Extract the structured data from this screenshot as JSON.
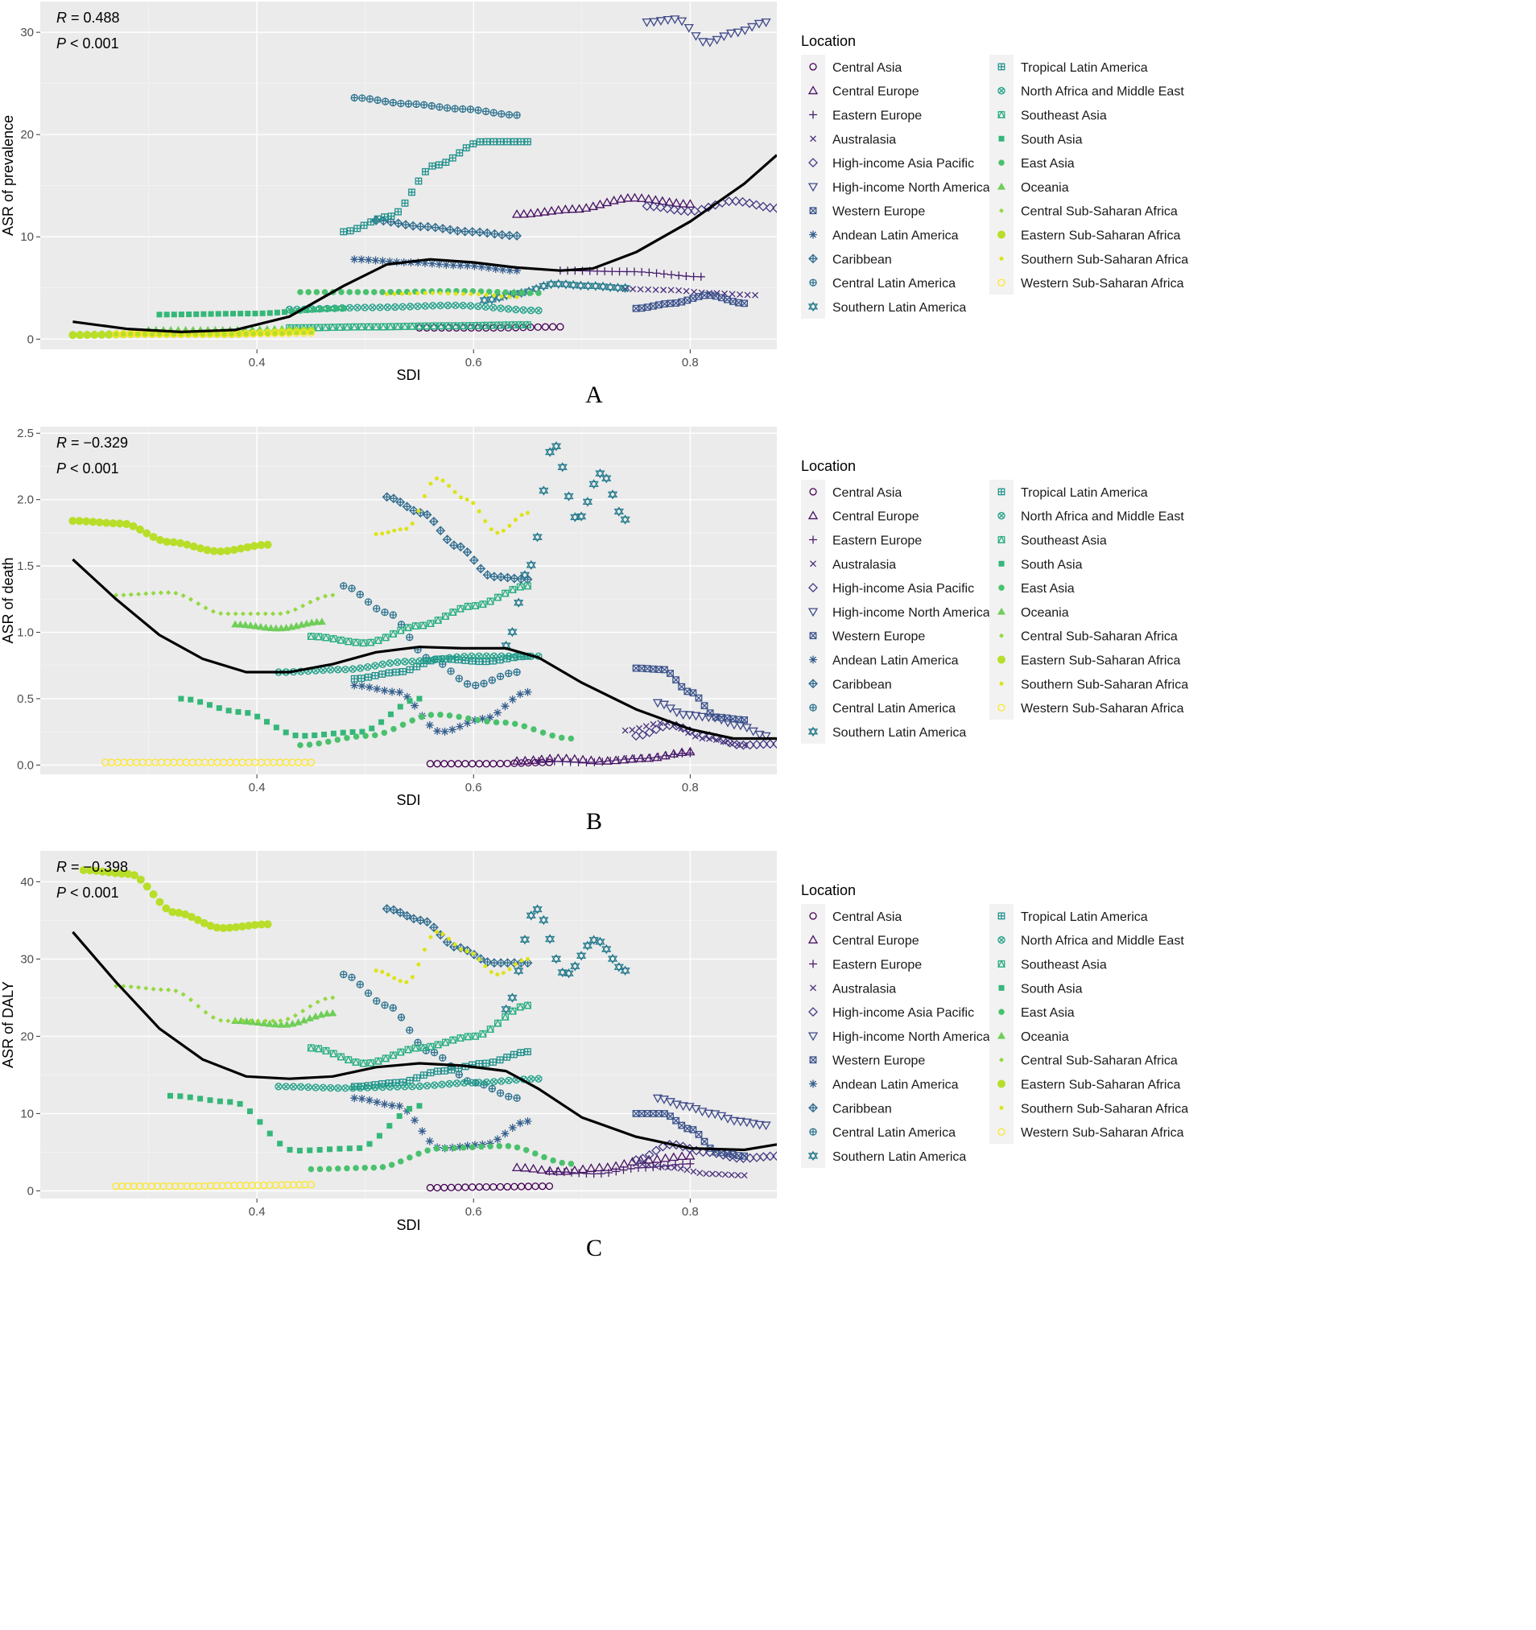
{
  "locations": [
    {
      "name": "Central Asia",
      "shape": "circle",
      "color": "#440154"
    },
    {
      "name": "Central Europe",
      "shape": "triangle",
      "color": "#471063"
    },
    {
      "name": "Eastern Europe",
      "shape": "plus",
      "color": "#481d6f"
    },
    {
      "name": "Australasia",
      "shape": "cross",
      "color": "#472d7b"
    },
    {
      "name": "High-income Asia Pacific",
      "shape": "diamond",
      "color": "#443983"
    },
    {
      "name": "High-income North America",
      "shape": "triangle-down",
      "color": "#3e4989"
    },
    {
      "name": "Western Europe",
      "shape": "square-cross",
      "color": "#3b528b"
    },
    {
      "name": "Andean Latin America",
      "shape": "star",
      "color": "#355f8d"
    },
    {
      "name": "Caribbean",
      "shape": "diamond-plus",
      "color": "#2f6c8e"
    },
    {
      "name": "Central Latin America",
      "shape": "circle-plus",
      "color": "#2c728e"
    },
    {
      "name": "Southern Latin America",
      "shape": "star-of-david",
      "color": "#287c8e"
    },
    {
      "name": "Tropical Latin America",
      "shape": "square-plus",
      "color": "#21918c"
    },
    {
      "name": "North Africa and Middle East",
      "shape": "circle-cross",
      "color": "#1fa088"
    },
    {
      "name": "Southeast Asia",
      "shape": "square-triangle",
      "color": "#27ad81"
    },
    {
      "name": "South Asia",
      "shape": "filled-square",
      "color": "#35b779"
    },
    {
      "name": "East Asia",
      "shape": "filled-circle",
      "color": "#4ac16d"
    },
    {
      "name": "Oceania",
      "shape": "filled-triangle",
      "color": "#6ece58"
    },
    {
      "name": "Central Sub-Saharan Africa",
      "shape": "filled-diamond",
      "color": "#95d840"
    },
    {
      "name": "Eastern Sub-Saharan Africa",
      "shape": "large-filled-circle",
      "color": "#b8de29"
    },
    {
      "name": "Southern Sub-Saharan Africa",
      "shape": "small-filled-circle",
      "color": "#dde318"
    },
    {
      "name": "Western Sub-Saharan Africa",
      "shape": "open-circle",
      "color": "#fde725"
    }
  ],
  "chart_data": [
    {
      "panel": "A",
      "type": "scatter",
      "xlabel": "SDI",
      "ylabel": "ASR of prevalence",
      "r_label": "R",
      "r_value": "= 0.488",
      "p_label": "P",
      "p_value": "< 0.001",
      "xlim": [
        0.2,
        0.88
      ],
      "ylim": [
        -1,
        33
      ],
      "xticks": [
        0.4,
        0.6,
        0.8
      ],
      "yticks": [
        0,
        10,
        20,
        30
      ],
      "legend_title": "Location",
      "legend_position": "right",
      "fit_line": [
        [
          0.23,
          1.7
        ],
        [
          0.28,
          1.0
        ],
        [
          0.33,
          0.7
        ],
        [
          0.38,
          0.9
        ],
        [
          0.43,
          2.2
        ],
        [
          0.48,
          5.2
        ],
        [
          0.52,
          7.3
        ],
        [
          0.56,
          7.8
        ],
        [
          0.6,
          7.5
        ],
        [
          0.64,
          7.0
        ],
        [
          0.68,
          6.7
        ],
        [
          0.71,
          6.9
        ],
        [
          0.75,
          8.5
        ],
        [
          0.8,
          11.5
        ],
        [
          0.85,
          15.2
        ],
        [
          0.88,
          18.0
        ]
      ],
      "series": [
        {
          "loc": 0,
          "x0": 0.55,
          "x1": 0.68,
          "n": 20,
          "y": [
            1.1,
            1.1,
            1.2
          ]
        },
        {
          "loc": 1,
          "x0": 0.64,
          "x1": 0.8,
          "n": 26,
          "y": [
            12.2,
            12.7,
            13.8,
            13.2
          ]
        },
        {
          "loc": 2,
          "x0": 0.68,
          "x1": 0.81,
          "n": 20,
          "y": [
            6.7,
            6.6,
            6.1
          ]
        },
        {
          "loc": 3,
          "x0": 0.74,
          "x1": 0.86,
          "n": 18,
          "y": [
            4.9,
            4.8,
            4.5,
            4.3
          ]
        },
        {
          "loc": 4,
          "x0": 0.76,
          "x1": 0.88,
          "n": 20,
          "y": [
            13.0,
            12.5,
            13.5,
            12.8
          ]
        },
        {
          "loc": 5,
          "x0": 0.76,
          "x1": 0.87,
          "n": 18,
          "y": [
            31.0,
            31.3,
            29.0,
            30.0,
            31.0
          ]
        },
        {
          "loc": 6,
          "x0": 0.75,
          "x1": 0.85,
          "n": 20,
          "y": [
            3.0,
            3.5,
            4.3,
            3.5
          ]
        },
        {
          "loc": 7,
          "x0": 0.49,
          "x1": 0.64,
          "n": 24,
          "y": [
            7.8,
            7.5,
            7.2,
            6.7
          ]
        },
        {
          "loc": 8,
          "x0": 0.51,
          "x1": 0.64,
          "n": 20,
          "y": [
            11.6,
            11.0,
            10.5,
            10.1
          ]
        },
        {
          "loc": 9,
          "x0": 0.49,
          "x1": 0.64,
          "n": 22,
          "y": [
            23.6,
            23.0,
            22.5,
            21.9
          ]
        },
        {
          "loc": 10,
          "x0": 0.61,
          "x1": 0.74,
          "n": 20,
          "y": [
            3.8,
            4.5,
            5.4,
            5.2,
            5.0
          ]
        },
        {
          "loc": 11,
          "x0": 0.48,
          "x1": 0.65,
          "n": 28,
          "y": [
            10.5,
            12.0,
            17.0,
            19.3,
            19.3
          ]
        },
        {
          "loc": 12,
          "x0": 0.43,
          "x1": 0.66,
          "n": 34,
          "y": [
            2.9,
            3.1,
            3.3,
            2.8
          ]
        },
        {
          "loc": 13,
          "x0": 0.43,
          "x1": 0.65,
          "n": 34,
          "y": [
            1.1,
            1.2,
            1.3,
            1.4
          ]
        },
        {
          "loc": 14,
          "x0": 0.31,
          "x1": 0.48,
          "n": 26,
          "y": [
            2.4,
            2.5,
            3.0
          ]
        },
        {
          "loc": 15,
          "x0": 0.44,
          "x1": 0.66,
          "n": 30,
          "y": [
            4.6,
            4.6,
            4.7,
            4.5
          ]
        },
        {
          "loc": 16,
          "x0": 0.3,
          "x1": 0.43,
          "n": 20,
          "y": [
            0.9,
            0.9,
            1.0
          ]
        },
        {
          "loc": 17,
          "x0": 0.23,
          "x1": 0.4,
          "n": 26,
          "y": [
            0.6,
            0.7,
            0.5,
            0.7
          ]
        },
        {
          "loc": 18,
          "x0": 0.23,
          "x1": 0.45,
          "n": 34,
          "y": [
            0.4,
            0.5,
            0.5,
            0.8
          ]
        },
        {
          "loc": 19,
          "x0": 0.52,
          "x1": 0.64,
          "n": 18,
          "y": [
            4.4,
            4.5,
            4.4,
            4.1
          ]
        },
        {
          "loc": 20,
          "x0": 0.27,
          "x1": 0.45,
          "n": 28,
          "y": [
            0.5,
            0.5,
            0.6
          ]
        }
      ]
    },
    {
      "panel": "B",
      "type": "scatter",
      "xlabel": "SDI",
      "ylabel": "ASR of death",
      "r_label": "R",
      "r_value": "= −0.329",
      "p_label": "P",
      "p_value": "< 0.001",
      "xlim": [
        0.2,
        0.88
      ],
      "ylim": [
        -0.07,
        2.55
      ],
      "xticks": [
        0.4,
        0.6,
        0.8
      ],
      "yticks": [
        0.0,
        0.5,
        1.0,
        1.5,
        2.0,
        2.5
      ],
      "legend_title": "Location",
      "legend_position": "right",
      "fit_line": [
        [
          0.23,
          1.55
        ],
        [
          0.27,
          1.25
        ],
        [
          0.31,
          0.98
        ],
        [
          0.35,
          0.8
        ],
        [
          0.39,
          0.7
        ],
        [
          0.43,
          0.7
        ],
        [
          0.47,
          0.76
        ],
        [
          0.51,
          0.85
        ],
        [
          0.55,
          0.89
        ],
        [
          0.59,
          0.88
        ],
        [
          0.63,
          0.88
        ],
        [
          0.66,
          0.81
        ],
        [
          0.7,
          0.62
        ],
        [
          0.75,
          0.42
        ],
        [
          0.8,
          0.27
        ],
        [
          0.84,
          0.2
        ],
        [
          0.88,
          0.2
        ]
      ],
      "series": [
        {
          "loc": 0,
          "x0": 0.56,
          "x1": 0.67,
          "n": 18,
          "y": [
            0.01,
            0.01,
            0.02
          ]
        },
        {
          "loc": 1,
          "x0": 0.64,
          "x1": 0.8,
          "n": 22,
          "y": [
            0.03,
            0.05,
            0.03,
            0.05,
            0.1
          ]
        },
        {
          "loc": 2,
          "x0": 0.66,
          "x1": 0.8,
          "n": 20,
          "y": [
            0.03,
            0.02,
            0.05,
            0.09
          ]
        },
        {
          "loc": 3,
          "x0": 0.74,
          "x1": 0.85,
          "n": 18,
          "y": [
            0.26,
            0.32,
            0.2,
            0.15
          ]
        },
        {
          "loc": 4,
          "x0": 0.75,
          "x1": 0.88,
          "n": 22,
          "y": [
            0.22,
            0.3,
            0.22,
            0.15,
            0.16
          ]
        },
        {
          "loc": 5,
          "x0": 0.77,
          "x1": 0.87,
          "n": 18,
          "y": [
            0.47,
            0.38,
            0.36,
            0.3,
            0.22
          ]
        },
        {
          "loc": 6,
          "x0": 0.75,
          "x1": 0.85,
          "n": 20,
          "y": [
            0.73,
            0.72,
            0.55,
            0.36,
            0.34
          ]
        },
        {
          "loc": 7,
          "x0": 0.49,
          "x1": 0.65,
          "n": 24,
          "y": [
            0.6,
            0.55,
            0.25,
            0.35,
            0.55
          ]
        },
        {
          "loc": 8,
          "x0": 0.52,
          "x1": 0.65,
          "n": 22,
          "y": [
            2.02,
            1.9,
            1.65,
            1.42,
            1.4
          ]
        },
        {
          "loc": 9,
          "x0": 0.48,
          "x1": 0.64,
          "n": 22,
          "y": [
            1.35,
            1.15,
            0.8,
            0.6,
            0.7
          ]
        },
        {
          "loc": 10,
          "x0": 0.63,
          "x1": 0.74,
          "n": 20,
          "y": [
            0.9,
            1.5,
            2.42,
            1.85,
            2.2,
            1.85
          ]
        },
        {
          "loc": 11,
          "x0": 0.49,
          "x1": 0.65,
          "n": 26,
          "y": [
            0.65,
            0.7,
            0.8,
            0.78,
            0.82
          ]
        },
        {
          "loc": 12,
          "x0": 0.42,
          "x1": 0.66,
          "n": 36,
          "y": [
            0.7,
            0.72,
            0.78,
            0.82,
            0.82
          ]
        },
        {
          "loc": 13,
          "x0": 0.45,
          "x1": 0.65,
          "n": 30,
          "y": [
            0.97,
            0.92,
            1.05,
            1.2,
            1.35
          ]
        },
        {
          "loc": 14,
          "x0": 0.33,
          "x1": 0.55,
          "n": 26,
          "y": [
            0.5,
            0.4,
            0.22,
            0.25,
            0.5
          ]
        },
        {
          "loc": 15,
          "x0": 0.44,
          "x1": 0.69,
          "n": 30,
          "y": [
            0.15,
            0.22,
            0.38,
            0.32,
            0.2
          ]
        },
        {
          "loc": 16,
          "x0": 0.38,
          "x1": 0.46,
          "n": 18,
          "y": [
            1.06,
            1.03,
            1.08
          ]
        },
        {
          "loc": 17,
          "x0": 0.27,
          "x1": 0.47,
          "n": 30,
          "y": [
            1.28,
            1.3,
            1.14,
            1.14,
            1.28
          ]
        },
        {
          "loc": 18,
          "x0": 0.23,
          "x1": 0.41,
          "n": 30,
          "y": [
            1.84,
            1.82,
            1.68,
            1.61,
            1.66
          ]
        },
        {
          "loc": 19,
          "x0": 0.51,
          "x1": 0.65,
          "n": 26,
          "y": [
            1.74,
            1.78,
            2.16,
            2.0,
            1.75,
            1.9
          ]
        },
        {
          "loc": 20,
          "x0": 0.26,
          "x1": 0.45,
          "n": 34,
          "y": [
            0.02,
            0.02,
            0.02,
            0.02
          ]
        }
      ]
    },
    {
      "panel": "C",
      "type": "scatter",
      "xlabel": "SDI",
      "ylabel": "ASR of DALY",
      "r_label": "R",
      "r_value": "= −0.398",
      "p_label": "P",
      "p_value": "< 0.001",
      "xlim": [
        0.2,
        0.88
      ],
      "ylim": [
        -1,
        44
      ],
      "xticks": [
        0.4,
        0.6,
        0.8
      ],
      "yticks": [
        0,
        10,
        20,
        30,
        40
      ],
      "legend_title": "Location",
      "legend_position": "right",
      "fit_line": [
        [
          0.23,
          33.5
        ],
        [
          0.27,
          27.0
        ],
        [
          0.31,
          21.0
        ],
        [
          0.35,
          17.0
        ],
        [
          0.39,
          14.8
        ],
        [
          0.43,
          14.5
        ],
        [
          0.47,
          14.8
        ],
        [
          0.51,
          16.0
        ],
        [
          0.55,
          16.5
        ],
        [
          0.59,
          16.2
        ],
        [
          0.63,
          15.5
        ],
        [
          0.66,
          13.2
        ],
        [
          0.7,
          9.5
        ],
        [
          0.75,
          7.0
        ],
        [
          0.8,
          5.5
        ],
        [
          0.85,
          5.3
        ],
        [
          0.88,
          6.0
        ]
      ],
      "series": [
        {
          "loc": 0,
          "x0": 0.56,
          "x1": 0.67,
          "n": 18,
          "y": [
            0.4,
            0.5,
            0.6
          ]
        },
        {
          "loc": 1,
          "x0": 0.64,
          "x1": 0.8,
          "n": 22,
          "y": [
            3.0,
            2.5,
            3.0,
            4.0,
            4.5
          ]
        },
        {
          "loc": 2,
          "x0": 0.67,
          "x1": 0.8,
          "n": 20,
          "y": [
            2.5,
            2.2,
            3.0,
            3.5
          ]
        },
        {
          "loc": 3,
          "x0": 0.75,
          "x1": 0.85,
          "n": 18,
          "y": [
            3.5,
            3.0,
            2.2,
            2.0
          ]
        },
        {
          "loc": 4,
          "x0": 0.75,
          "x1": 0.88,
          "n": 22,
          "y": [
            4.0,
            6.0,
            5.0,
            4.2,
            4.5
          ]
        },
        {
          "loc": 5,
          "x0": 0.77,
          "x1": 0.87,
          "n": 18,
          "y": [
            12.0,
            11.0,
            10.0,
            9.0,
            8.5
          ]
        },
        {
          "loc": 6,
          "x0": 0.75,
          "x1": 0.85,
          "n": 20,
          "y": [
            10.0,
            10.0,
            8.0,
            5.0,
            4.5
          ]
        },
        {
          "loc": 7,
          "x0": 0.49,
          "x1": 0.65,
          "n": 24,
          "y": [
            12.0,
            11.0,
            5.5,
            6.0,
            9.0
          ]
        },
        {
          "loc": 8,
          "x0": 0.52,
          "x1": 0.65,
          "n": 22,
          "y": [
            36.5,
            35.0,
            31.5,
            29.5,
            29.5
          ]
        },
        {
          "loc": 9,
          "x0": 0.48,
          "x1": 0.64,
          "n": 22,
          "y": [
            28.0,
            24.0,
            18.0,
            14.0,
            12.0
          ]
        },
        {
          "loc": 10,
          "x0": 0.63,
          "x1": 0.74,
          "n": 20,
          "y": [
            23.5,
            36.5,
            28.0,
            32.5,
            28.5
          ]
        },
        {
          "loc": 11,
          "x0": 0.49,
          "x1": 0.65,
          "n": 26,
          "y": [
            13.5,
            14.0,
            15.5,
            16.5,
            18.0
          ]
        },
        {
          "loc": 12,
          "x0": 0.42,
          "x1": 0.66,
          "n": 36,
          "y": [
            13.5,
            13.3,
            13.5,
            14.0,
            14.5
          ]
        },
        {
          "loc": 13,
          "x0": 0.45,
          "x1": 0.65,
          "n": 30,
          "y": [
            18.5,
            16.5,
            18.5,
            20.0,
            24.0
          ]
        },
        {
          "loc": 14,
          "x0": 0.32,
          "x1": 0.55,
          "n": 26,
          "y": [
            12.3,
            11.5,
            5.2,
            5.5,
            11.0
          ]
        },
        {
          "loc": 15,
          "x0": 0.45,
          "x1": 0.69,
          "n": 30,
          "y": [
            2.8,
            3.0,
            5.5,
            5.8,
            3.5
          ]
        },
        {
          "loc": 16,
          "x0": 0.38,
          "x1": 0.47,
          "n": 18,
          "y": [
            22.0,
            21.5,
            23.0
          ]
        },
        {
          "loc": 17,
          "x0": 0.27,
          "x1": 0.47,
          "n": 30,
          "y": [
            26.5,
            26.0,
            22.0,
            22.0,
            25.0
          ]
        },
        {
          "loc": 18,
          "x0": 0.24,
          "x1": 0.41,
          "n": 30,
          "y": [
            41.5,
            41.0,
            36.0,
            34.0,
            34.5
          ]
        },
        {
          "loc": 19,
          "x0": 0.51,
          "x1": 0.65,
          "n": 26,
          "y": [
            28.5,
            27.0,
            33.5,
            31.0,
            28.0,
            30.0
          ]
        },
        {
          "loc": 20,
          "x0": 0.27,
          "x1": 0.45,
          "n": 34,
          "y": [
            0.6,
            0.6,
            0.7,
            0.8
          ]
        }
      ]
    }
  ]
}
